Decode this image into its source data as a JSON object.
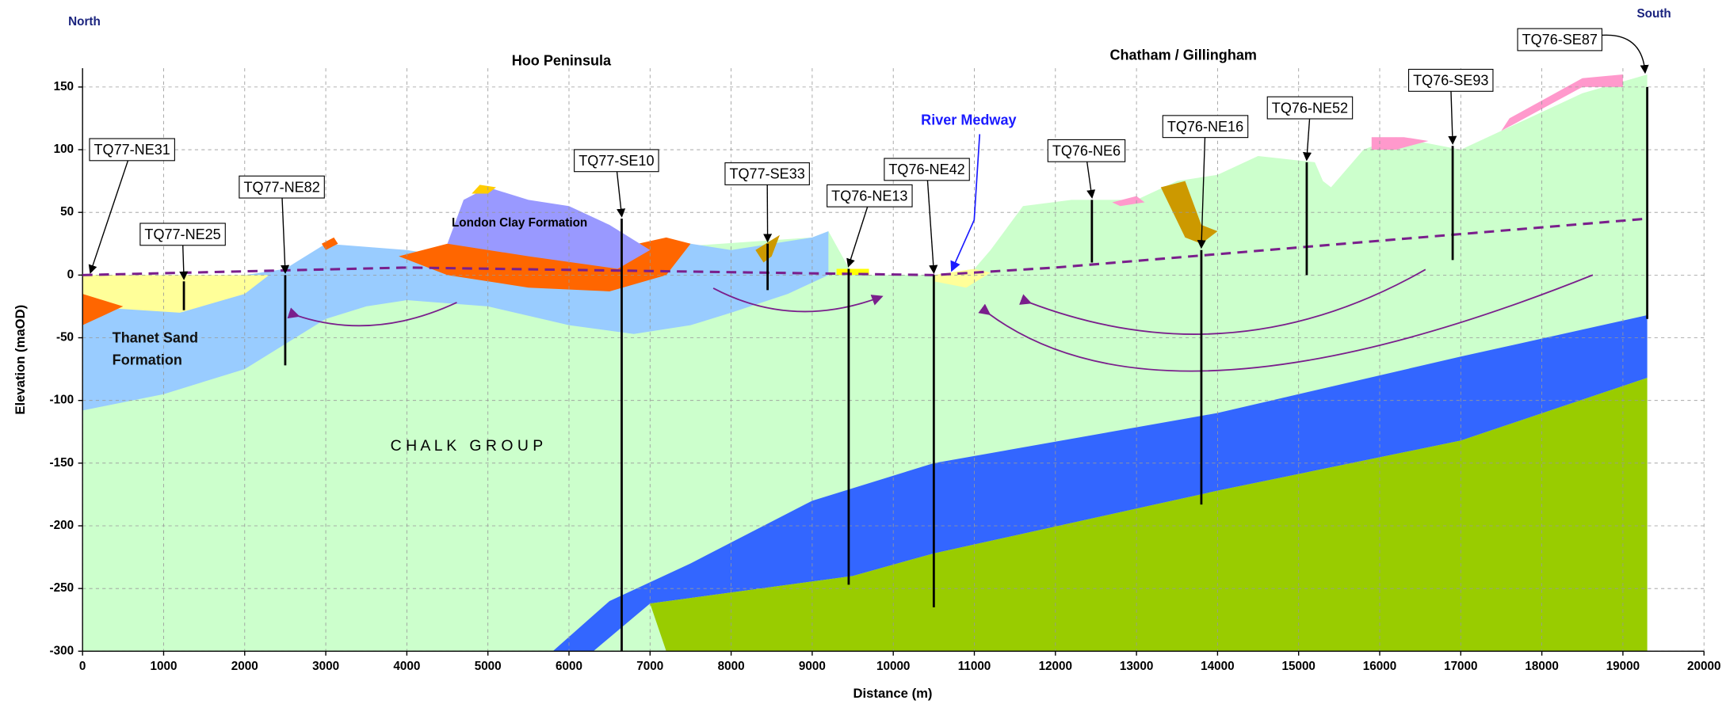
{
  "chart_data": {
    "type": "section",
    "xlabel": "Distance (m)",
    "ylabel": "Elevation (maOD)",
    "xlim": [
      0,
      20000
    ],
    "ylim": [
      -300,
      165
    ],
    "xticks": [
      0,
      1000,
      2000,
      3000,
      4000,
      5000,
      6000,
      7000,
      8000,
      9000,
      10000,
      11000,
      12000,
      13000,
      14000,
      15000,
      16000,
      17000,
      18000,
      19000,
      20000
    ],
    "yticks": [
      -300,
      -250,
      -200,
      -150,
      -100,
      -50,
      0,
      50,
      100,
      150
    ],
    "grid": true,
    "annotations": {
      "north": "North",
      "south": "South",
      "hoo": "Hoo Peninsula",
      "chatham": "Chatham / Gillingham",
      "medway": "River Medway",
      "london_clay": "London Clay Formation",
      "thanet_1": "Thanet Sand",
      "thanet_2": "Formation",
      "chalk": "C H A L K   G R O U P"
    },
    "layers": [
      {
        "color": "#ccffcc",
        "x": [
          0,
          19300,
          19300,
          18500,
          17500,
          17000,
          16200,
          15800,
          15400,
          15300,
          15200,
          14500,
          14000,
          13500,
          13000,
          12200,
          11600,
          11200,
          11000,
          10500,
          9500,
          9200,
          9000,
          0
        ],
        "y": [
          -300,
          -300,
          160,
          145,
          115,
          100,
          110,
          100,
          70,
          75,
          90,
          95,
          80,
          75,
          60,
          60,
          55,
          20,
          5,
          0,
          0,
          35,
          30,
          -10
        ]
      },
      {
        "color": "#99ccff",
        "x": [
          0,
          1000,
          2000,
          3000,
          3500,
          4000,
          5000,
          6000,
          6800,
          7500,
          8000,
          8700,
          9200,
          9200,
          9000,
          8000,
          7500,
          6000,
          5000,
          4000,
          3000,
          2500,
          2000,
          0
        ],
        "y": [
          -108,
          -95,
          -75,
          -35,
          -25,
          -20,
          -25,
          -40,
          -47,
          -40,
          -30,
          -15,
          0,
          35,
          30,
          20,
          25,
          10,
          10,
          20,
          25,
          5,
          0,
          0
        ]
      },
      {
        "color": "#ffff99",
        "x": [
          0,
          2300,
          2000,
          1200,
          0
        ],
        "y": [
          0,
          0,
          -15,
          -30,
          -25
        ]
      },
      {
        "color": "#ffff99",
        "x": [
          10500,
          11000,
          11200,
          10900,
          10500
        ],
        "y": [
          0,
          5,
          2,
          -10,
          -5
        ]
      },
      {
        "color": "#ff6600",
        "x": [
          0,
          500,
          0
        ],
        "y": [
          -15,
          -25,
          -40
        ]
      },
      {
        "color": "#ff6600",
        "x": [
          2950,
          3100,
          3150,
          3000
        ],
        "y": [
          25,
          30,
          25,
          20
        ]
      },
      {
        "color": "#ff6600",
        "x": [
          3900,
          4500,
          5500,
          6500,
          7200,
          7500,
          7200,
          6500,
          5500,
          4500
        ],
        "y": [
          15,
          25,
          30,
          20,
          30,
          25,
          0,
          -13,
          -10,
          0
        ]
      },
      {
        "color": "#9999ff",
        "x": [
          4500,
          4700,
          5000,
          5500,
          6000,
          6500,
          7000,
          6600,
          5500,
          4500
        ],
        "y": [
          25,
          60,
          70,
          60,
          55,
          40,
          20,
          5,
          15,
          25
        ]
      },
      {
        "color": "#ffcc00",
        "x": [
          4800,
          4900,
          5100,
          5000
        ],
        "y": [
          65,
          72,
          70,
          65
        ]
      },
      {
        "color": "#cc9900",
        "x": [
          8300,
          8600,
          8500,
          8400
        ],
        "y": [
          20,
          32,
          15,
          10
        ]
      },
      {
        "color": "#cc9900",
        "x": [
          13300,
          13600,
          13800,
          14000,
          13800,
          13600
        ],
        "y": [
          70,
          75,
          40,
          35,
          25,
          30
        ]
      },
      {
        "color": "#ffff00",
        "x": [
          9300,
          9700,
          9700,
          9300
        ],
        "y": [
          5,
          5,
          0,
          0
        ]
      },
      {
        "color": "#ff99cc",
        "x": [
          17500,
          18500,
          19000,
          19000,
          18500,
          17600
        ],
        "y": [
          115,
          150,
          150,
          160,
          157,
          125
        ]
      },
      {
        "color": "#ff99cc",
        "x": [
          15900,
          16300,
          16600,
          16200,
          15900
        ],
        "y": [
          110,
          110,
          107,
          100,
          100
        ]
      },
      {
        "color": "#ff99cc",
        "x": [
          12700,
          13000,
          13100,
          12800
        ],
        "y": [
          58,
          63,
          58,
          55
        ]
      },
      {
        "color": "#3366ff",
        "x": [
          5800,
          6500,
          7500,
          9000,
          10500,
          14000,
          17000,
          19300,
          19300,
          17000,
          14000,
          10500,
          9500,
          7000,
          6300
        ],
        "y": [
          -300,
          -260,
          -230,
          -180,
          -150,
          -110,
          -65,
          -32,
          -82,
          -132,
          -172,
          -222,
          -240,
          -262,
          -300
        ]
      },
      {
        "color": "#99cc00",
        "x": [
          7200,
          7000,
          9500,
          10500,
          14000,
          17000,
          19300,
          19300
        ],
        "y": [
          -300,
          -262,
          -240,
          -222,
          -172,
          -132,
          -82,
          -300
        ]
      }
    ],
    "water_table": {
      "color": "#7a1f8c",
      "x": [
        0,
        4000,
        10500,
        12000,
        19300
      ],
      "y": [
        0,
        6,
        0,
        6,
        45
      ]
    },
    "boreholes": [
      {
        "name": "TQ77-NE31",
        "x": 100,
        "top": 0,
        "bottom": 0
      },
      {
        "name": "TQ77-NE25",
        "x": 1250,
        "top": -5,
        "bottom": -28
      },
      {
        "name": "TQ77-NE82",
        "x": 2500,
        "top": 0,
        "bottom": -72
      },
      {
        "name": "TQ77-SE10",
        "x": 6650,
        "top": 45,
        "bottom": -300
      },
      {
        "name": "TQ77-SE33",
        "x": 8450,
        "top": 25,
        "bottom": -12
      },
      {
        "name": "TQ76-NE13",
        "x": 9450,
        "top": 5,
        "bottom": -247
      },
      {
        "name": "TQ76-NE42",
        "x": 10500,
        "top": 0,
        "bottom": -265
      },
      {
        "name": "TQ76-NE6",
        "x": 12450,
        "top": 60,
        "bottom": 10
      },
      {
        "name": "TQ76-NE16",
        "x": 13800,
        "top": 20,
        "bottom": -183
      },
      {
        "name": "TQ76-NE52",
        "x": 15100,
        "top": 90,
        "bottom": 0
      },
      {
        "name": "TQ76-SE93",
        "x": 16900,
        "top": 103,
        "bottom": 12
      },
      {
        "name": "TQ76-SE87",
        "x": 19300,
        "top": 150,
        "bottom": -35
      }
    ]
  }
}
